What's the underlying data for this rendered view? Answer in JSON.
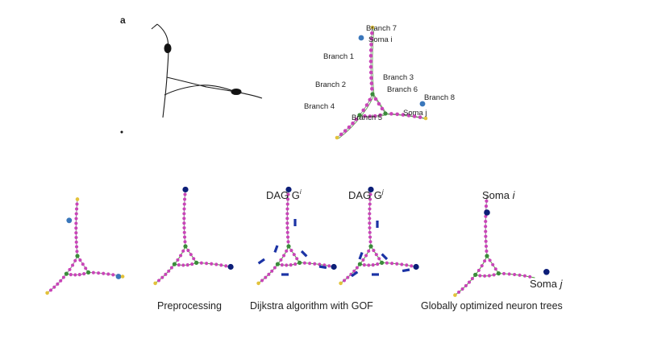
{
  "panel_letter": "a",
  "top_labels": {
    "branch7": "Branch 7",
    "soma_i": "Soma i",
    "branch1": "Branch 1",
    "branch3": "Branch 3",
    "branch2": "Branch 2",
    "branch6": "Branch 6",
    "branch8": "Branch 8",
    "branch4": "Branch 4",
    "soma_j": "Soma j",
    "branch5": "Branch 5"
  },
  "dag_labels": {
    "gi": "DAG G",
    "gi_sup": "i",
    "gj": "DAG G",
    "gj_sup": "j"
  },
  "captions": {
    "preprocessing": "Preprocessing",
    "dijkstra": "Dijkstra algorithm with GOF",
    "globally": "Globally optimized neuron trees"
  },
  "soma_labels": {
    "soma_i_name": "Soma",
    "soma_i_sub": "i",
    "soma_j_name": "Soma",
    "soma_j_sub": "j"
  },
  "colors": {
    "node": "#c945b8",
    "junction": "#3b8b3b",
    "end": "#e3c23a",
    "soma_light": "#3a77bb",
    "soma_dark": "#0c1e78",
    "arrow": "#1b33a5",
    "edge": "#8a8a8a",
    "edge_selected": "#4f9f3f"
  }
}
